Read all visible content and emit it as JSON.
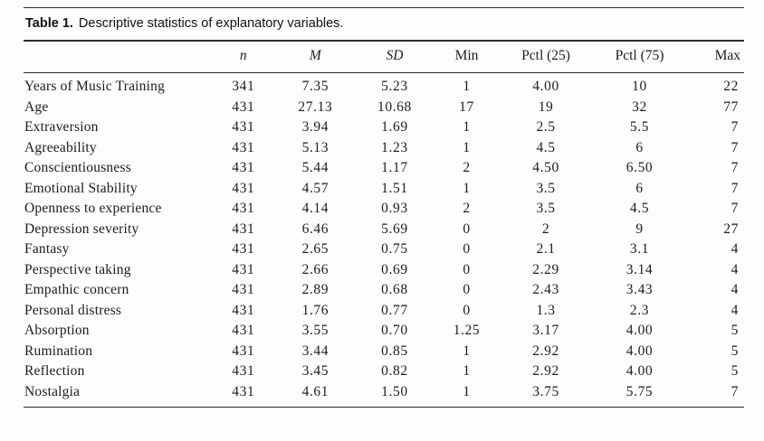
{
  "table": {
    "title_label": "Table 1.",
    "title_text": "Descriptive statistics of explanatory variables.",
    "columns": [
      "",
      "n",
      "M",
      "SD",
      "Min",
      "Pctl (25)",
      "Pctl (75)",
      "Max"
    ],
    "rows": [
      {
        "label": "Years of Music Training",
        "values": [
          "341",
          "7.35",
          "5.23",
          "1",
          "4.00",
          "10",
          "22"
        ]
      },
      {
        "label": "Age",
        "values": [
          "431",
          "27.13",
          "10.68",
          "17",
          "19",
          "32",
          "77"
        ]
      },
      {
        "label": "Extraversion",
        "values": [
          "431",
          "3.94",
          "1.69",
          "1",
          "2.5",
          "5.5",
          "7"
        ]
      },
      {
        "label": "Agreeability",
        "values": [
          "431",
          "5.13",
          "1.23",
          "1",
          "4.5",
          "6",
          "7"
        ]
      },
      {
        "label": "Conscientiousness",
        "values": [
          "431",
          "5.44",
          "1.17",
          "2",
          "4.50",
          "6.50",
          "7"
        ]
      },
      {
        "label": "Emotional Stability",
        "values": [
          "431",
          "4.57",
          "1.51",
          "1",
          "3.5",
          "6",
          "7"
        ]
      },
      {
        "label": "Openness to experience",
        "values": [
          "431",
          "4.14",
          "0.93",
          "2",
          "3.5",
          "4.5",
          "7"
        ]
      },
      {
        "label": "Depression severity",
        "values": [
          "431",
          "6.46",
          "5.69",
          "0",
          "2",
          "9",
          "27"
        ]
      },
      {
        "label": "Fantasy",
        "values": [
          "431",
          "2.65",
          "0.75",
          "0",
          "2.1",
          "3.1",
          "4"
        ]
      },
      {
        "label": "Perspective taking",
        "values": [
          "431",
          "2.66",
          "0.69",
          "0",
          "2.29",
          "3.14",
          "4"
        ]
      },
      {
        "label": "Empathic concern",
        "values": [
          "431",
          "2.89",
          "0.68",
          "0",
          "2.43",
          "3.43",
          "4"
        ]
      },
      {
        "label": "Personal distress",
        "values": [
          "431",
          "1.76",
          "0.77",
          "0",
          "1.3",
          "2.3",
          "4"
        ]
      },
      {
        "label": "Absorption",
        "values": [
          "431",
          "3.55",
          "0.70",
          "1.25",
          "3.17",
          "4.00",
          "5"
        ]
      },
      {
        "label": "Rumination",
        "values": [
          "431",
          "3.44",
          "0.85",
          "1",
          "2.92",
          "4.00",
          "5"
        ]
      },
      {
        "label": "Reflection",
        "values": [
          "431",
          "3.45",
          "0.82",
          "1",
          "2.92",
          "4.00",
          "5"
        ]
      },
      {
        "label": "Nostalgia",
        "values": [
          "431",
          "4.61",
          "1.50",
          "1",
          "3.75",
          "5.75",
          "7"
        ]
      }
    ]
  }
}
